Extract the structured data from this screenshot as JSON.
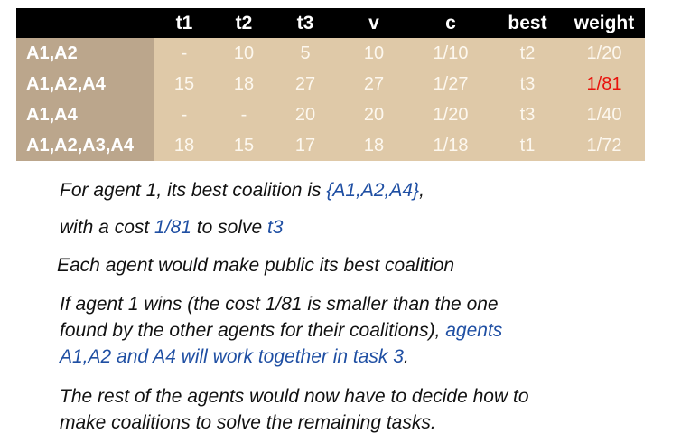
{
  "table": {
    "headers": [
      "",
      "t1",
      "t2",
      "t3",
      "v",
      "c",
      "best",
      "weight"
    ],
    "rows": [
      {
        "label": "A1,A2",
        "t1": "-",
        "t2": "10",
        "t3": "5",
        "v": "10",
        "c": "1/10",
        "best": "t2",
        "weight": "1/20"
      },
      {
        "label": "A1,A2,A4",
        "t1": "15",
        "t2": "18",
        "t3": "27",
        "v": "27",
        "c": "1/27",
        "best": "t3",
        "weight": "1/81"
      },
      {
        "label": "A1,A4",
        "t1": "-",
        "t2": "-",
        "t3": "20",
        "v": "20",
        "c": "1/20",
        "best": "t3",
        "weight": "1/40"
      },
      {
        "label": "A1,A2,A3,A4",
        "t1": "18",
        "t2": "15",
        "t3": "17",
        "v": "18",
        "c": "1/18",
        "best": "t1",
        "weight": "1/72"
      }
    ],
    "highlight_color": "#e8120c",
    "header_bg": "#000000",
    "row_bg": "#dfc9a8",
    "label_bg": "#bba68c"
  },
  "paragraphs": {
    "p1": {
      "a": "For agent 1, its best coalition is ",
      "b": "{A1,A2,A4}",
      "c": ","
    },
    "p2": {
      "a": "with a cost ",
      "b": "1/81",
      "c": " to solve ",
      "d": "t3"
    },
    "p3": "Each agent would make public its best coalition",
    "p4": {
      "line1": "If agent 1 wins (the cost 1/81 is smaller than the one",
      "line2a": "found by the other agents for their coalitions), ",
      "line2b": "agents",
      "line3a": "A1,A2 and A4 will work together in task 3",
      "line3b": "."
    },
    "p5": {
      "line1": "The rest of the agents would now have to decide how to",
      "line2": "make coalitions to solve the remaining tasks."
    },
    "accent_color": "#1f4fa3"
  }
}
